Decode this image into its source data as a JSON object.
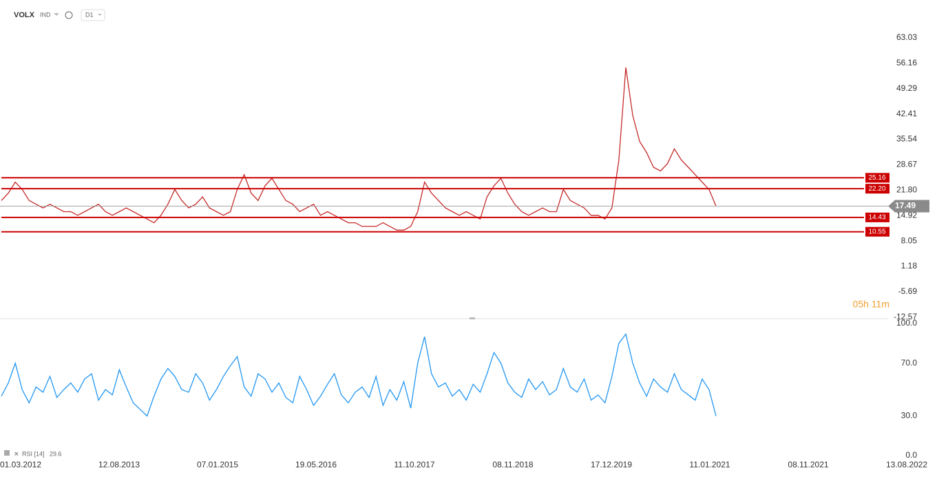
{
  "header": {
    "symbol": "VOLX",
    "market": "IND",
    "interval": "D1",
    "countdown": "05h 11m"
  },
  "time_axis": [
    "01.03.2012",
    "12.08.2013",
    "07.01.2015",
    "19.05.2016",
    "11.10.2017",
    "08.11.2018",
    "17.12.2019",
    "11.01.2021",
    "08.11.2021",
    "13.08.2022"
  ],
  "chart_data": [
    {
      "type": "line",
      "series": [
        {
          "color": "#c62828",
          "values": [
            19,
            21,
            24,
            22,
            19,
            18,
            17,
            18,
            17,
            16,
            16,
            15,
            16,
            17,
            18,
            16,
            15,
            16,
            17,
            16,
            15,
            14,
            13,
            15,
            18,
            22,
            19,
            17,
            18,
            20,
            17,
            16,
            15,
            16,
            22,
            26,
            21,
            19,
            23,
            25,
            22,
            19,
            18,
            16,
            17,
            18,
            15,
            16,
            15,
            14,
            13,
            13,
            12,
            12,
            12,
            13,
            12,
            11,
            11,
            12,
            16,
            24,
            21,
            19,
            17,
            16,
            15,
            16,
            15,
            14,
            20,
            23,
            25,
            21,
            18,
            16,
            15,
            16,
            17,
            16,
            16,
            22,
            19,
            18,
            17,
            15,
            15,
            14,
            17,
            30,
            55,
            42,
            35,
            32,
            28,
            27,
            29,
            33,
            30,
            28,
            26,
            24,
            22,
            17.49
          ]
        }
      ],
      "ylim": [
        -12.98,
        73.28
      ],
      "yticks": [
        63.03,
        56.16,
        49.29,
        42.41,
        35.54,
        28.67,
        {
          "value": 21.8,
          "label": "21.80"
        },
        14.92,
        8.05,
        1.18,
        -5.69,
        -12.57
      ],
      "levels": [
        25.16,
        {
          "value": 22.2,
          "label": "22.20"
        },
        14.43,
        10.55
      ],
      "level_color": "#cc0000",
      "current": 17.49
    },
    {
      "type": "line",
      "name": "RSI [14]",
      "last": 29.6,
      "series": [
        {
          "color": "#2196f3",
          "values": [
            45,
            55,
            70,
            50,
            40,
            52,
            48,
            60,
            44,
            50,
            55,
            48,
            58,
            62,
            42,
            50,
            46,
            65,
            52,
            40,
            35,
            30,
            45,
            58,
            66,
            60,
            50,
            48,
            62,
            55,
            42,
            50,
            60,
            68,
            75,
            52,
            45,
            62,
            58,
            48,
            55,
            44,
            40,
            60,
            50,
            38,
            45,
            54,
            62,
            46,
            40,
            48,
            52,
            44,
            60,
            38,
            50,
            42,
            56,
            36,
            70,
            90,
            62,
            52,
            55,
            45,
            50,
            42,
            54,
            48,
            62,
            78,
            70,
            55,
            48,
            44,
            58,
            50,
            56,
            46,
            50,
            66,
            52,
            48,
            58,
            42,
            46,
            40,
            60,
            85,
            92,
            70,
            55,
            45,
            58,
            52,
            48,
            62,
            50,
            46,
            42,
            58,
            50,
            30
          ]
        }
      ],
      "ylim": [
        0,
        100
      ],
      "yticks": [
        {
          "value": 100,
          "label": "100.0"
        },
        {
          "value": 70,
          "label": "70.0"
        },
        {
          "value": 30,
          "label": "30.0"
        },
        {
          "value": 0,
          "label": "0.0"
        }
      ]
    }
  ]
}
